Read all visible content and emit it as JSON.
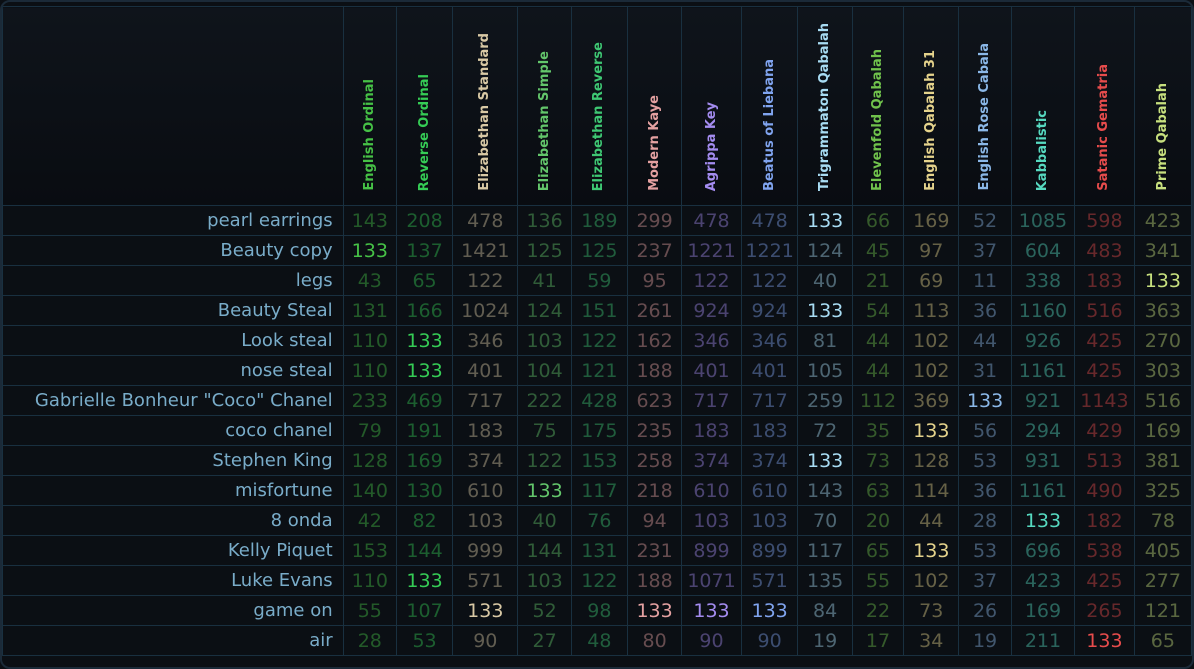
{
  "ciphers": [
    {
      "name": "English Ordinal",
      "color": "#46c146"
    },
    {
      "name": "Reverse Ordinal",
      "color": "#35cc55"
    },
    {
      "name": "Elizabethan Standard",
      "color": "#d9c9a5"
    },
    {
      "name": "Elizabethan Simple",
      "color": "#63c66b"
    },
    {
      "name": "Elizabethan Reverse",
      "color": "#3ec773"
    },
    {
      "name": "Modern Kaye",
      "color": "#e4a1a1"
    },
    {
      "name": "Agrippa Key",
      "color": "#a48cf0"
    },
    {
      "name": "Beatus of Liebana",
      "color": "#80a4ef"
    },
    {
      "name": "Trigrammaton Qabalah",
      "color": "#a8dcf3"
    },
    {
      "name": "Elevenfold Qabalah",
      "color": "#70c24c"
    },
    {
      "name": "English Qabalah 31",
      "color": "#e5d38c"
    },
    {
      "name": "English Rose Cabala",
      "color": "#8bb8e8"
    },
    {
      "name": "Kabbalistic",
      "color": "#56d9c0"
    },
    {
      "name": "Satanic Gematria",
      "color": "#e74c4c"
    },
    {
      "name": "Prime Qabalah",
      "color": "#c7e07e"
    }
  ],
  "col_widths": [
    53,
    56,
    65,
    53,
    56,
    54,
    59,
    56,
    54,
    51,
    55,
    52,
    63,
    59,
    57
  ],
  "highlight_value": "133",
  "rows": [
    {
      "phrase": "pearl earrings",
      "values": [
        "143",
        "208",
        "478",
        "136",
        "189",
        "299",
        "478",
        "478",
        "133",
        "66",
        "169",
        "52",
        "1085",
        "598",
        "423"
      ]
    },
    {
      "phrase": "Beauty copy",
      "values": [
        "133",
        "137",
        "1421",
        "125",
        "125",
        "237",
        "1221",
        "1221",
        "124",
        "45",
        "97",
        "37",
        "604",
        "483",
        "341"
      ]
    },
    {
      "phrase": "legs",
      "values": [
        "43",
        "65",
        "122",
        "41",
        "59",
        "95",
        "122",
        "122",
        "40",
        "21",
        "69",
        "11",
        "338",
        "183",
        "133"
      ]
    },
    {
      "phrase": "Beauty Steal",
      "values": [
        "131",
        "166",
        "1024",
        "124",
        "151",
        "261",
        "924",
        "924",
        "133",
        "54",
        "113",
        "36",
        "1160",
        "516",
        "363"
      ]
    },
    {
      "phrase": "Look steal",
      "values": [
        "110",
        "133",
        "346",
        "103",
        "122",
        "162",
        "346",
        "346",
        "81",
        "44",
        "102",
        "44",
        "926",
        "425",
        "270"
      ]
    },
    {
      "phrase": "nose steal",
      "values": [
        "110",
        "133",
        "401",
        "104",
        "121",
        "188",
        "401",
        "401",
        "105",
        "44",
        "102",
        "31",
        "1161",
        "425",
        "303"
      ]
    },
    {
      "phrase": "Gabrielle Bonheur \"Coco\" Chanel",
      "values": [
        "233",
        "469",
        "717",
        "222",
        "428",
        "623",
        "717",
        "717",
        "259",
        "112",
        "369",
        "133",
        "921",
        "1143",
        "516"
      ]
    },
    {
      "phrase": "coco chanel",
      "values": [
        "79",
        "191",
        "183",
        "75",
        "175",
        "235",
        "183",
        "183",
        "72",
        "35",
        "133",
        "56",
        "294",
        "429",
        "169"
      ]
    },
    {
      "phrase": "Stephen King",
      "values": [
        "128",
        "169",
        "374",
        "122",
        "153",
        "258",
        "374",
        "374",
        "133",
        "73",
        "128",
        "53",
        "931",
        "513",
        "381"
      ]
    },
    {
      "phrase": "misfortune",
      "values": [
        "140",
        "130",
        "610",
        "133",
        "117",
        "218",
        "610",
        "610",
        "143",
        "63",
        "114",
        "36",
        "1161",
        "490",
        "325"
      ]
    },
    {
      "phrase": "8 onda",
      "values": [
        "42",
        "82",
        "103",
        "40",
        "76",
        "94",
        "103",
        "103",
        "70",
        "20",
        "44",
        "28",
        "133",
        "182",
        "78"
      ]
    },
    {
      "phrase": "Kelly Piquet",
      "values": [
        "153",
        "144",
        "999",
        "144",
        "131",
        "231",
        "899",
        "899",
        "117",
        "65",
        "133",
        "53",
        "696",
        "538",
        "405"
      ]
    },
    {
      "phrase": "Luke Evans",
      "values": [
        "110",
        "133",
        "571",
        "103",
        "122",
        "188",
        "1071",
        "571",
        "135",
        "55",
        "102",
        "37",
        "423",
        "425",
        "277"
      ]
    },
    {
      "phrase": "game on",
      "values": [
        "55",
        "107",
        "133",
        "52",
        "98",
        "133",
        "133",
        "133",
        "84",
        "22",
        "73",
        "26",
        "169",
        "265",
        "121"
      ]
    },
    {
      "phrase": "air",
      "values": [
        "28",
        "53",
        "90",
        "27",
        "48",
        "80",
        "90",
        "90",
        "19",
        "17",
        "34",
        "19",
        "211",
        "133",
        "65"
      ]
    }
  ]
}
